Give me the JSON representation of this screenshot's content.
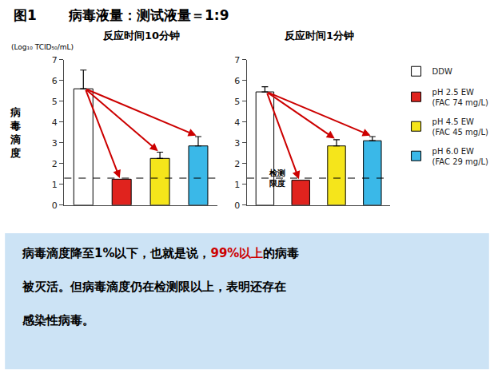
{
  "title_label": "图1",
  "title": "病毒液量：测试液量＝1:9",
  "ylabel": "病\n毒\n滴\n度",
  "yunit": "(Log₁₀ TCID₅₀/mL)",
  "note": [
    [
      {
        "text": "病毒滴度降至",
        "color": "black"
      },
      {
        "text": "1%以下",
        "color": "black"
      },
      {
        "text": "，也就是说，",
        "color": "black"
      },
      {
        "text": "99%以上",
        "color": "#cc0000"
      },
      {
        "text": "的病毒",
        "color": "black"
      }
    ],
    [
      {
        "text": "被灭活。但病毒滴度仍在检测限以上，表明还存在",
        "color": "black"
      }
    ],
    [
      {
        "text": "感染性病毒。",
        "color": "black"
      }
    ]
  ],
  "note_background": "#cce3f5",
  "chart_data": [
    {
      "type": "bar",
      "subtitle": "反应时间10分钟",
      "categories": [
        "DDW",
        "pH 2.5 EW\n(FAC 74 mg/L)",
        "pH 4.5 EW\n(FAC 45 mg/L)",
        "pH 6.0 EW\n(FAC 29 mg/L)"
      ],
      "values": [
        5.6,
        1.25,
        2.25,
        2.85
      ],
      "errors": [
        0.9,
        0.0,
        0.3,
        0.45
      ],
      "colors": [
        "#ffffff",
        "#e0231e",
        "#f5e51b",
        "#3ab8e8"
      ],
      "ylim": [
        0,
        7
      ],
      "yticks": [
        0,
        1,
        2,
        3,
        4,
        5,
        6,
        7
      ],
      "tick_labels": "y",
      "grid": false,
      "legend": "right",
      "detection_limit": 1.3,
      "arrow_color": "#cc0000"
    },
    {
      "type": "bar",
      "subtitle": "反应时间1分钟",
      "categories": [
        "DDW",
        "pH 2.5 EW\n(FAC 74 mg/L)",
        "pH 4.5 EW\n(FAC 45 mg/L)",
        "pH 6.0 EW\n(FAC 29 mg/L)"
      ],
      "values": [
        5.45,
        1.2,
        2.85,
        3.1
      ],
      "errors": [
        0.25,
        0.0,
        0.3,
        0.2
      ],
      "colors": [
        "#ffffff",
        "#e0231e",
        "#f5e51b",
        "#3ab8e8"
      ],
      "ylim": [
        0,
        7
      ],
      "yticks": [
        0,
        1,
        2,
        3,
        4,
        5,
        6,
        7
      ],
      "tick_labels": "y",
      "grid": false,
      "detection_limit": 1.3,
      "detection_label": "检测\n限度",
      "arrow_color": "#cc0000"
    }
  ]
}
